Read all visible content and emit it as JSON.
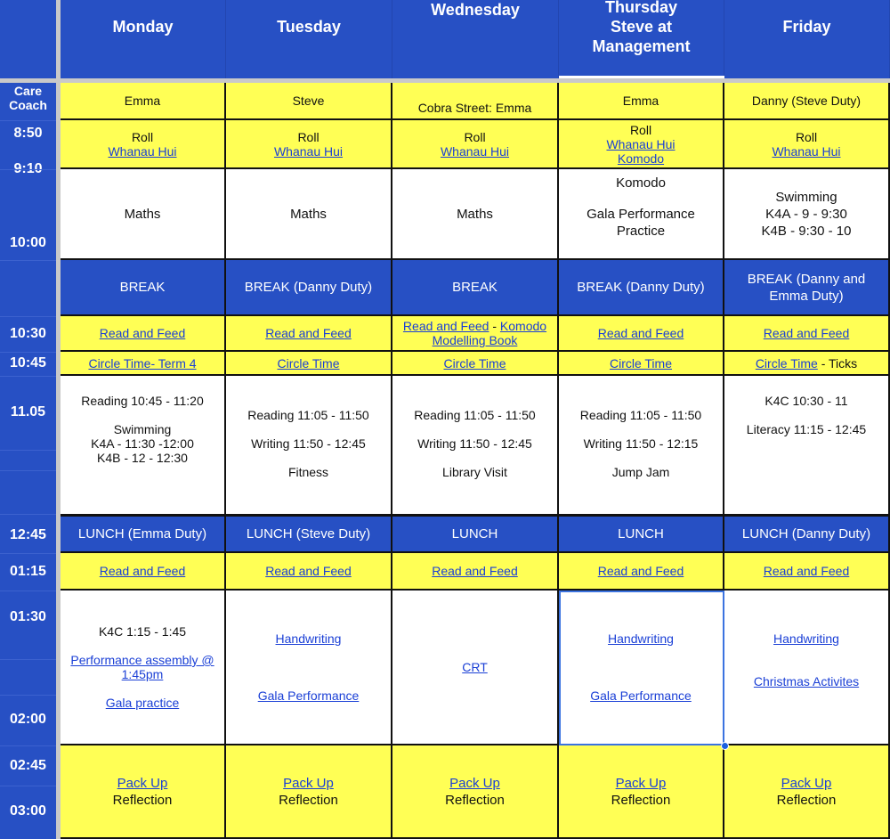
{
  "days": [
    "Monday",
    "Tuesday",
    "Wednesday",
    "Thursday\nSteve at\nManagement",
    "Friday"
  ],
  "times": [
    "Care\nCoach",
    "8:50",
    "9:10",
    "10:00",
    "10:30",
    "10:45",
    "11.05",
    "12:45",
    "01:15",
    "01:30",
    "02:00",
    "02:45",
    "03:00"
  ],
  "colors": {
    "header_blue": "#2750c4",
    "yellow": "#ffff55",
    "link": "#1a3fd6"
  },
  "rows": [
    {
      "kind": "care-coach",
      "style": "yellow",
      "cells": [
        [
          [
            {
              "t": "Emma"
            }
          ]
        ],
        [
          [
            {
              "t": "Steve"
            }
          ]
        ],
        [
          [
            {
              "t": ""
            }
          ],
          [
            {
              "t": "Cobra Street: Emma"
            }
          ]
        ],
        [
          [
            {
              "t": "Emma"
            }
          ]
        ],
        [
          [
            {
              "t": "Danny (Steve Duty)"
            }
          ]
        ]
      ]
    },
    {
      "kind": "roll",
      "style": "yellow",
      "cells": [
        [
          [
            {
              "t": "Roll"
            }
          ],
          [
            {
              "t": "Whanau Hui",
              "link": true
            }
          ]
        ],
        [
          [
            {
              "t": "Roll"
            }
          ],
          [
            {
              "t": "Whanau Hui",
              "link": true
            }
          ]
        ],
        [
          [
            {
              "t": "Roll"
            }
          ],
          [
            {
              "t": "Whanau Hui",
              "link": true
            }
          ]
        ],
        [
          [
            {
              "t": "Roll"
            }
          ],
          [
            {
              "t": "Whanau Hui",
              "link": true
            }
          ],
          [
            {
              "t": "Komodo",
              "link": true
            }
          ]
        ],
        [
          [
            {
              "t": "Roll"
            }
          ],
          [
            {
              "t": "Whanau Hui",
              "link": true
            }
          ]
        ]
      ]
    },
    {
      "kind": "maths",
      "style": "white",
      "big": true,
      "cells": [
        [
          [
            {
              "t": "Maths"
            }
          ]
        ],
        [
          [
            {
              "t": "Maths"
            }
          ]
        ],
        [
          [
            {
              "t": "Maths"
            }
          ]
        ],
        [
          [
            {
              "t": "Komodo"
            }
          ],
          [
            {
              "t": ""
            }
          ],
          [
            {
              "t": "Gala Performance"
            }
          ],
          [
            {
              "t": "Practice"
            }
          ],
          [
            {
              "t": ""
            }
          ]
        ],
        [
          [
            {
              "t": "Swimming"
            }
          ],
          [
            {
              "t": "K4A - 9 - 9:30"
            }
          ],
          [
            {
              "t": "K4B - 9:30 - 10"
            }
          ]
        ]
      ]
    },
    {
      "kind": "break",
      "style": "blue",
      "cells": [
        [
          [
            {
              "t": "BREAK"
            }
          ]
        ],
        [
          [
            {
              "t": "BREAK (Danny Duty)"
            }
          ]
        ],
        [
          [
            {
              "t": "BREAK"
            }
          ]
        ],
        [
          [
            {
              "t": "BREAK (Danny Duty)"
            }
          ]
        ],
        [
          [
            {
              "t": "BREAK (Danny and"
            }
          ],
          [
            {
              "t": "Emma Duty)"
            }
          ]
        ]
      ]
    },
    {
      "kind": "read-and-feed-am",
      "style": "yellow",
      "cells": [
        [
          [
            {
              "t": "Read and Feed",
              "link": true
            }
          ]
        ],
        [
          [
            {
              "t": "Read and Feed",
              "link": true
            }
          ]
        ],
        [
          [
            {
              "t": "Read and Feed",
              "link": true
            },
            {
              "t": " - "
            },
            {
              "t": "Komodo",
              "link": true
            }
          ],
          [
            {
              "t": "Modelling Book",
              "link": true
            }
          ]
        ],
        [
          [
            {
              "t": "Read and Feed",
              "link": true
            }
          ]
        ],
        [
          [
            {
              "t": "Read and Feed",
              "link": true
            }
          ]
        ]
      ]
    },
    {
      "kind": "circle-time",
      "style": "yellow",
      "cells": [
        [
          [
            {
              "t": "Circle Time- Term 4",
              "link": true
            }
          ]
        ],
        [
          [
            {
              "t": "Circle Time",
              "link": true
            }
          ]
        ],
        [
          [
            {
              "t": "Circle Time",
              "link": true
            }
          ]
        ],
        [
          [
            {
              "t": "Circle Time",
              "link": true
            }
          ]
        ],
        [
          [
            {
              "t": "Circle Time",
              "link": true
            },
            {
              "t": " - Ticks"
            }
          ]
        ]
      ]
    },
    {
      "kind": "literacy",
      "style": "white",
      "top": true,
      "cells": [
        [
          [
            {
              "t": "Reading 10:45 - 11:20"
            }
          ],
          [
            {
              "t": ""
            }
          ],
          [
            {
              "t": "Swimming"
            }
          ],
          [
            {
              "t": "K4A - 11:30 -12:00"
            }
          ],
          [
            {
              "t": "K4B - 12 - 12:30"
            }
          ]
        ],
        [
          [
            {
              "t": ""
            }
          ],
          [
            {
              "t": "Reading 11:05 - 11:50"
            }
          ],
          [
            {
              "t": ""
            }
          ],
          [
            {
              "t": "Writing 11:50 - 12:45"
            }
          ],
          [
            {
              "t": ""
            }
          ],
          [
            {
              "t": "Fitness"
            }
          ]
        ],
        [
          [
            {
              "t": ""
            }
          ],
          [
            {
              "t": "Reading 11:05 - 11:50"
            }
          ],
          [
            {
              "t": ""
            }
          ],
          [
            {
              "t": "Writing 11:50 - 12:45"
            }
          ],
          [
            {
              "t": ""
            }
          ],
          [
            {
              "t": "Library Visit"
            }
          ]
        ],
        [
          [
            {
              "t": ""
            }
          ],
          [
            {
              "t": "Reading 11:05 - 11:50"
            }
          ],
          [
            {
              "t": ""
            }
          ],
          [
            {
              "t": "Writing 11:50 - 12:15"
            }
          ],
          [
            {
              "t": ""
            }
          ],
          [
            {
              "t": "Jump Jam"
            }
          ]
        ],
        [
          [
            {
              "t": "K4C 10:30 - 11"
            }
          ],
          [
            {
              "t": ""
            }
          ],
          [
            {
              "t": "Literacy 11:15 - 12:45"
            }
          ]
        ]
      ]
    },
    {
      "kind": "lunch",
      "style": "blue",
      "cells": [
        [
          [
            {
              "t": "LUNCH (Emma Duty)"
            }
          ]
        ],
        [
          [
            {
              "t": "LUNCH (Steve  Duty)"
            }
          ]
        ],
        [
          [
            {
              "t": "LUNCH"
            }
          ]
        ],
        [
          [
            {
              "t": "LUNCH"
            }
          ]
        ],
        [
          [
            {
              "t": "LUNCH (Danny Duty)"
            }
          ]
        ]
      ]
    },
    {
      "kind": "read-and-feed-pm",
      "style": "yellow",
      "cells": [
        [
          [
            {
              "t": "Read and Feed",
              "link": true
            }
          ]
        ],
        [
          [
            {
              "t": "Read and Feed",
              "link": true
            }
          ]
        ],
        [
          [
            {
              "t": "Read and Feed",
              "link": true
            }
          ]
        ],
        [
          [
            {
              "t": "Read and Feed",
              "link": true
            }
          ]
        ],
        [
          [
            {
              "t": "Read and Feed",
              "link": true
            }
          ]
        ]
      ]
    },
    {
      "kind": "afternoon",
      "style": "white",
      "cells": [
        [
          [
            {
              "t": "K4C 1:15 - 1:45"
            }
          ],
          [
            {
              "t": ""
            }
          ],
          [
            {
              "t": "Performance assembly @",
              "link": true
            }
          ],
          [
            {
              "t": "1:45pm",
              "link": true
            }
          ],
          [
            {
              "t": ""
            }
          ],
          [
            {
              "t": "Gala practice",
              "link": true
            }
          ]
        ],
        [
          [
            {
              "t": "Handwriting",
              "link": true
            }
          ],
          [
            {
              "t": ""
            }
          ],
          [
            {
              "t": ""
            }
          ],
          [
            {
              "t": ""
            }
          ],
          [
            {
              "t": "Gala Performance",
              "link": true
            }
          ]
        ],
        [
          [
            {
              "t": "CRT",
              "link": true
            }
          ]
        ],
        [
          [
            {
              "t": "Handwriting",
              "link": true
            }
          ],
          [
            {
              "t": ""
            }
          ],
          [
            {
              "t": ""
            }
          ],
          [
            {
              "t": ""
            }
          ],
          [
            {
              "t": "Gala Performance",
              "link": true
            }
          ]
        ],
        [
          [
            {
              "t": "Handwriting",
              "link": true
            }
          ],
          [
            {
              "t": ""
            }
          ],
          [
            {
              "t": ""
            }
          ],
          [
            {
              "t": "Christmas Activites",
              "link": true
            }
          ],
          [
            {
              "t": ""
            }
          ]
        ]
      ]
    },
    {
      "kind": "pack-up",
      "style": "yellow",
      "big": true,
      "cells": [
        [
          [
            {
              "t": "Pack Up",
              "link": true
            }
          ],
          [
            {
              "t": "Reflection"
            }
          ]
        ],
        [
          [
            {
              "t": "Pack Up",
              "link": true
            }
          ],
          [
            {
              "t": "Reflection"
            }
          ]
        ],
        [
          [
            {
              "t": "Pack Up",
              "link": true
            }
          ],
          [
            {
              "t": "Reflection"
            }
          ]
        ],
        [
          [
            {
              "t": "Pack Up",
              "link": true
            }
          ],
          [
            {
              "t": "Reflection"
            }
          ]
        ],
        [
          [
            {
              "t": "Pack Up",
              "link": true
            }
          ],
          [
            {
              "t": "Reflection"
            }
          ]
        ]
      ]
    }
  ]
}
